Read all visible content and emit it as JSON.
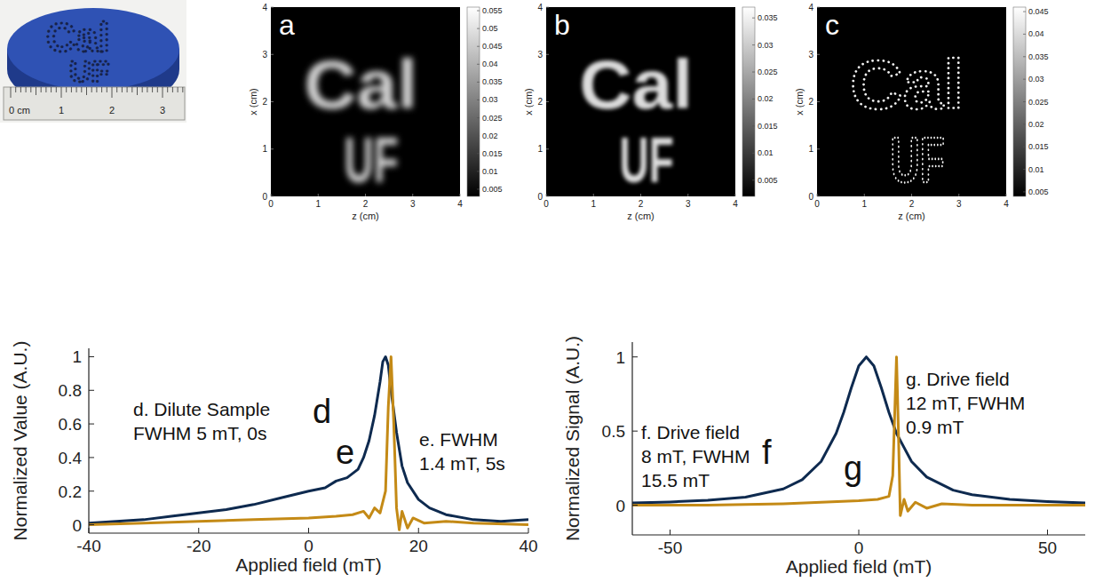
{
  "photo": {
    "engraving": [
      "Cal",
      "UF"
    ],
    "ruler_labels": [
      "0 cm",
      "1",
      "2",
      "3"
    ]
  },
  "chart_data": [
    {
      "type": "heatmap",
      "panel": "a",
      "x_label": "z (cm)",
      "y_label": "x (cm)",
      "xlim": [
        0,
        4
      ],
      "xticks": [
        0,
        1,
        2,
        3,
        4
      ],
      "ylim": [
        0,
        4
      ],
      "yticks": [
        0,
        1,
        2,
        3,
        4
      ],
      "image_text": [
        "Cal",
        "UF"
      ],
      "colorbar": {
        "range": [
          0.003,
          0.056
        ],
        "ticks": [
          0.005,
          0.01,
          0.015,
          0.02,
          0.025,
          0.03,
          0.035,
          0.04,
          0.045,
          0.05,
          0.055
        ]
      }
    },
    {
      "type": "heatmap",
      "panel": "b",
      "x_label": "z (cm)",
      "y_label": "x (cm)",
      "xlim": [
        0,
        4
      ],
      "xticks": [
        0,
        1,
        2,
        3,
        4
      ],
      "ylim": [
        0,
        4
      ],
      "yticks": [
        0,
        1,
        2,
        3,
        4
      ],
      "image_text": [
        "Cal",
        "UF"
      ],
      "colorbar": {
        "range": [
          0.002,
          0.037
        ],
        "ticks": [
          0.005,
          0.01,
          0.015,
          0.02,
          0.025,
          0.03,
          0.035
        ]
      }
    },
    {
      "type": "heatmap",
      "panel": "c",
      "x_label": "z (cm)",
      "y_label": "x (cm)",
      "xlim": [
        0,
        4
      ],
      "xticks": [
        0,
        1,
        2,
        3,
        4
      ],
      "ylim": [
        0,
        4
      ],
      "yticks": [
        0,
        1,
        2,
        3,
        4
      ],
      "image_text": [
        "Cal",
        "UF"
      ],
      "colorbar": {
        "range": [
          0.004,
          0.046
        ],
        "ticks": [
          0.005,
          0.01,
          0.015,
          0.02,
          0.025,
          0.03,
          0.035,
          0.04,
          0.045
        ]
      }
    },
    {
      "type": "line",
      "x_label": "Applied field (mT)",
      "y_label": "Normalized Value (A.U.)",
      "xlim": [
        -40,
        40
      ],
      "xticks": [
        -40,
        -20,
        0,
        20,
        40
      ],
      "ylim": [
        -0.05,
        1.05
      ],
      "yticks": [
        0,
        0.2,
        0.4,
        0.6,
        0.8,
        1
      ],
      "series": [
        {
          "name": "d",
          "color": "#0e2a4f",
          "annotations": [
            "d. Dilute Sample",
            "FWHM 5 mT, 0s"
          ],
          "x": [
            -40,
            -35,
            -30,
            -25,
            -20,
            -15,
            -10,
            -5,
            0,
            3,
            5,
            7,
            9,
            10,
            11,
            12,
            13,
            13.5,
            14,
            14.5,
            15,
            16,
            17,
            18,
            20,
            22,
            25,
            30,
            35,
            40
          ],
          "values": [
            0.01,
            0.02,
            0.03,
            0.05,
            0.07,
            0.09,
            0.12,
            0.16,
            0.2,
            0.22,
            0.26,
            0.28,
            0.33,
            0.4,
            0.5,
            0.65,
            0.85,
            0.97,
            1,
            0.95,
            0.8,
            0.55,
            0.35,
            0.25,
            0.15,
            0.1,
            0.06,
            0.03,
            0.02,
            0.03
          ]
        },
        {
          "name": "e",
          "color": "#c48a16",
          "annotations": [
            "e. FWHM",
            "1.4 mT, 5s"
          ],
          "x": [
            -40,
            -30,
            -20,
            -10,
            0,
            5,
            8,
            10,
            11,
            12,
            13,
            14,
            14.5,
            15,
            15.5,
            16,
            16.5,
            17,
            18,
            19,
            21,
            25,
            30,
            40
          ],
          "values": [
            0,
            0.01,
            0.02,
            0.03,
            0.04,
            0.05,
            0.06,
            0.08,
            0.04,
            0.1,
            0.07,
            0.2,
            0.7,
            1,
            0.6,
            0.1,
            -0.03,
            0.08,
            -0.02,
            0.04,
            0.01,
            0.02,
            0.01,
            0
          ]
        }
      ]
    },
    {
      "type": "line",
      "x_label": "Applied field (mT)",
      "y_label": "Normalized Signal (A.U.)",
      "xlim": [
        -60,
        60
      ],
      "xticks": [
        -50,
        0,
        50
      ],
      "ylim": [
        -0.2,
        1.1
      ],
      "yticks": [
        0,
        0.5,
        1
      ],
      "series": [
        {
          "name": "f",
          "color": "#0e2a4f",
          "annotations": [
            "f. Drive field",
            "8 mT, FWHM",
            "15.5 mT"
          ],
          "x": [
            -60,
            -50,
            -40,
            -30,
            -20,
            -15,
            -10,
            -6,
            -4,
            -2,
            0,
            2,
            4,
            6,
            8,
            10,
            14,
            18,
            25,
            30,
            40,
            50,
            60
          ],
          "values": [
            0.015,
            0.022,
            0.033,
            0.055,
            0.11,
            0.172,
            0.294,
            0.484,
            0.625,
            0.79,
            0.94,
            1,
            0.94,
            0.79,
            0.625,
            0.484,
            0.294,
            0.19,
            0.102,
            0.071,
            0.04,
            0.025,
            0.015
          ]
        },
        {
          "name": "g",
          "color": "#c48a16",
          "annotations": [
            "g. Drive field",
            "12 mT, FWHM",
            "0.9 mT"
          ],
          "x": [
            -60,
            -40,
            -20,
            -10,
            0,
            5,
            8,
            9,
            9.5,
            10,
            10.5,
            11,
            12,
            13,
            15,
            18,
            22,
            30,
            40,
            60
          ],
          "values": [
            0,
            0,
            0.01,
            0.02,
            0.03,
            0.04,
            0.06,
            0.2,
            0.6,
            1,
            0.5,
            -0.07,
            0.04,
            -0.04,
            0.02,
            -0.02,
            0.01,
            0,
            0,
            0
          ]
        }
      ]
    }
  ]
}
